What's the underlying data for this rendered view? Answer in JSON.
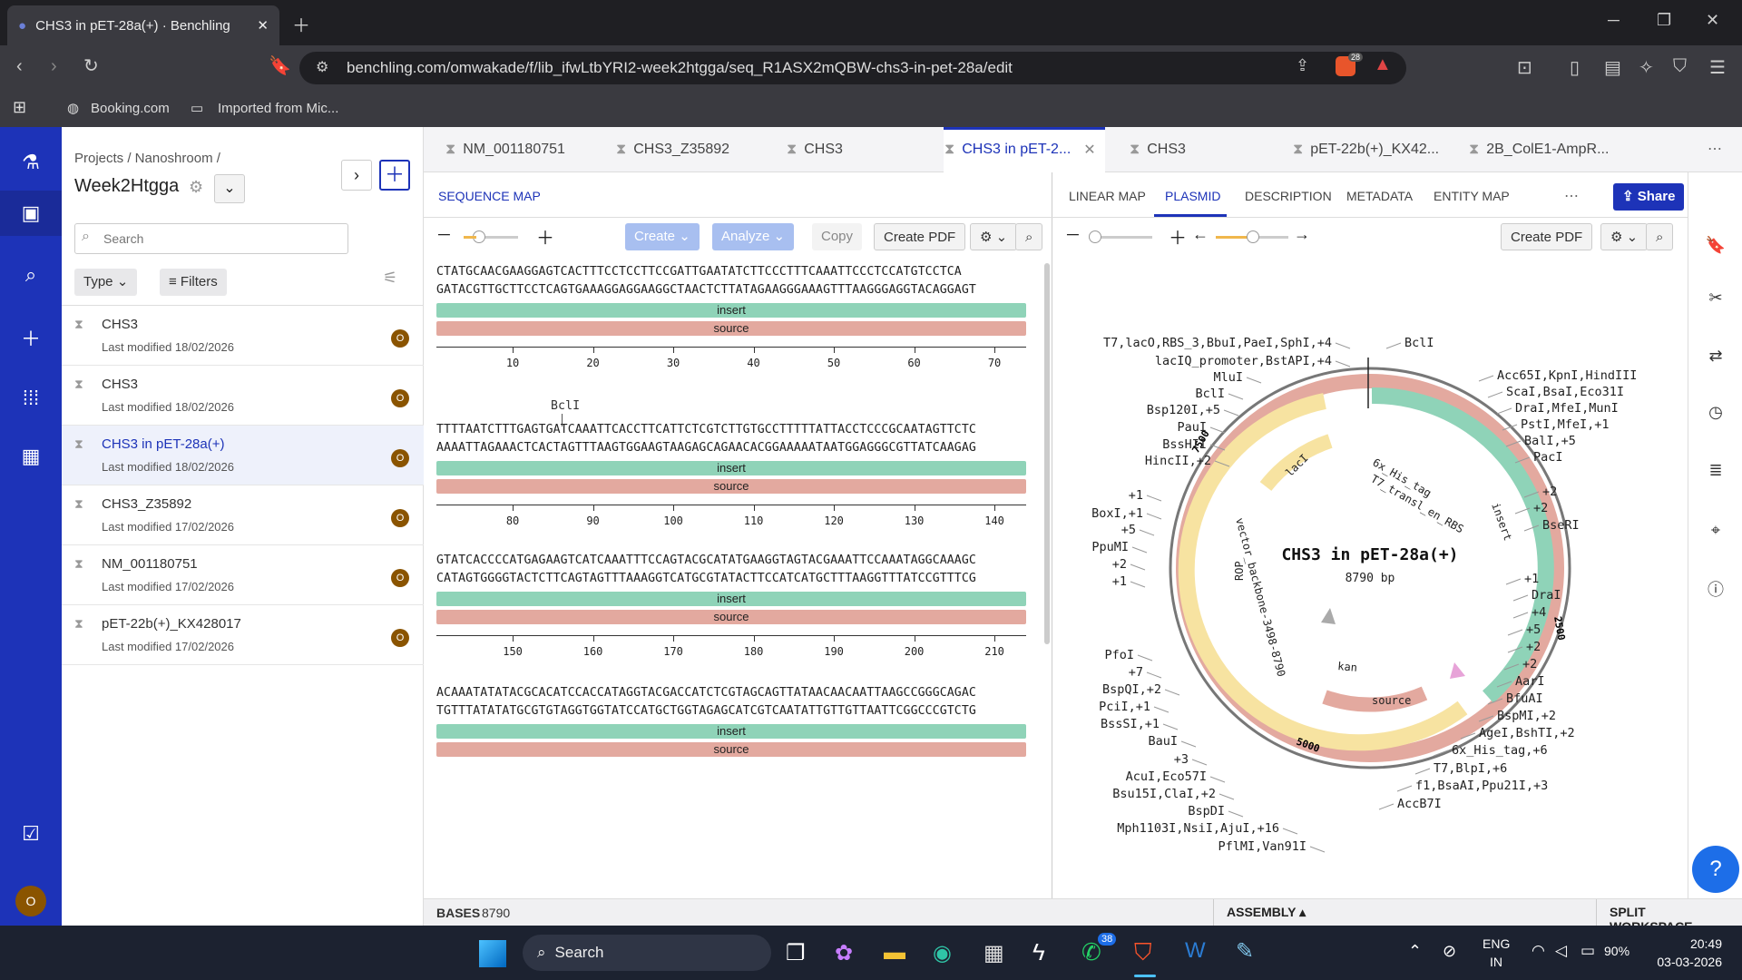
{
  "browser": {
    "tab_title": "CHS3 in pET-28a(+) · Benchling",
    "url": "benchling.com/omwakade/f/lib_ifwLtbYRI2-week2htgga/seq_R1ASX2mQBW-chs3-in-pet-28a/edit",
    "bookmarks": [
      "Booking.com",
      "Imported from Mic..."
    ],
    "brave_badge": "28"
  },
  "sidebar": {
    "breadcrumb": "Projects / Nanoshroom /",
    "folder": "Week2Htgga",
    "search_placeholder": "Search",
    "type_label": "Type",
    "filters_label": "Filters",
    "files": [
      {
        "name": "CHS3",
        "modified": "Last modified 18/02/2026",
        "avatar": "O"
      },
      {
        "name": "CHS3",
        "modified": "Last modified 18/02/2026",
        "avatar": "O"
      },
      {
        "name": "CHS3 in pET-28a(+)",
        "modified": "Last modified 18/02/2026",
        "avatar": "O"
      },
      {
        "name": "CHS3_Z35892",
        "modified": "Last modified 17/02/2026",
        "avatar": "O"
      },
      {
        "name": "NM_001180751",
        "modified": "Last modified 17/02/2026",
        "avatar": "O"
      },
      {
        "name": "pET-22b(+)_KX428017",
        "modified": "Last modified 17/02/2026",
        "avatar": "O"
      }
    ],
    "user_avatar": "O"
  },
  "doc_tabs": [
    "NM_001180751",
    "CHS3_Z35892",
    "CHS3",
    "CHS3 in pET-2...",
    "CHS3",
    "pET-22b(+)_KX42...",
    "2B_ColE1-AmpR..."
  ],
  "seq_panel": {
    "tab": "SEQUENCE MAP",
    "buttons": {
      "create": "Create",
      "analyze": "Analyze",
      "copy": "Copy",
      "pdf": "Create PDF"
    },
    "blocks": [
      {
        "top": "CTATGCAACGAAGGAGTCACTTTCCTCCTTCCGATTGAATATCTTCCCTTTCAAATTCCCTCCATGTCCTCA",
        "bottom": "GATACGTTGCTTCCTCAGTGAAAGGAGGAAGGCTAACTCTTATAGAAGGGAAAGTTTAAGGGAGGTACAGGAGT",
        "ticks": [
          "10",
          "20",
          "30",
          "40",
          "50",
          "60",
          "70"
        ],
        "enzyme": ""
      },
      {
        "top": "TTTTAATCTTTGAGTGATCAAATTCACCTTCATTCTCGTCTTGTGCCTTTTTATTACCTCCCGCAATAGTTCTC",
        "bottom": "AAAATTAGAAACTCACTAGTTTAAGTGGAAGTAAGAGCAGAACACGGAAAAATAATGGAGGGCGTTATCAAGAG",
        "ticks": [
          "80",
          "90",
          "100",
          "110",
          "120",
          "130",
          "140"
        ],
        "enzyme": "BclI"
      },
      {
        "top": "GTATCACCCCATGAGAAGTCATCAAATTTCCAGTACGCATATGAAGGTAGTACGAAATTCCAAATAGGCAAAGC",
        "bottom": "CATAGTGGGGTACTCTTCAGTAGTTTAAAGGTCATGCGTATACTTCCATCATGCTTTAAGGTTTATCCGTTTCG",
        "ticks": [
          "150",
          "160",
          "170",
          "180",
          "190",
          "200",
          "210",
          "220"
        ],
        "enzyme": ""
      },
      {
        "top": "ACAAATATATACGCACATCCACCATAGGTACGACCATCTCGTAGCAGTTATAACAACAATTAAGCCGGGCAGAC",
        "bottom": "TGTTTATATATGCGTGTAGGTGGTATCCATGCTGGTAGAGCATCGTCAATATTGTTGTTAATTCGGCCCGTCTG",
        "ticks": [],
        "enzyme": ""
      }
    ],
    "feature_insert": "insert",
    "feature_source": "source"
  },
  "plasmid_panel": {
    "tabs": [
      "LINEAR MAP",
      "PLASMID",
      "DESCRIPTION",
      "METADATA",
      "ENTITY MAP"
    ],
    "share": "Share",
    "pdf": "Create PDF",
    "name": "CHS3 in pET-28a(+)",
    "length": "8790 bp",
    "coords": [
      "7500",
      "2500",
      "5000"
    ],
    "features": [
      "lacI",
      "6x_His_tag",
      "T7_transl_en_RBS",
      "insert",
      "vector_backbone-3498-8790",
      "ROP",
      "kan",
      "source"
    ],
    "left_labels": [
      "T7,lacO,RBS_3,BbuI,PaeI,SphI,+4",
      "lacIQ_promoter,BstAPI,+4",
      "MluI",
      "BclI",
      "Bsp120I,+5",
      "PauI",
      "BssHII",
      "HincII,+2",
      "+1",
      "BoxI,+1",
      "+5",
      "PpuMI",
      "+2",
      "+1",
      "PfoI",
      "+7",
      "BspQI,+2",
      "PciI,+1",
      "BssSI,+1",
      "BauI",
      "+3",
      "AcuI,Eco57I",
      "Bsu15I,ClaI,+2",
      "BspDI",
      "Mph1103I,NsiI,AjuI,+16",
      "PflMI,Van91I"
    ],
    "right_labels": [
      "BclI",
      "Acc65I,KpnI,HindIII",
      "ScaI,BsaI,Eco31I",
      "DraI,MfeI,MunI",
      "PstI,MfeI,+1",
      "BalI,+5",
      "PacI",
      "+2",
      "+2",
      "BseRI",
      "+1",
      "DraI",
      "+4",
      "+5",
      "+2",
      "+2",
      "AarI",
      "BfuAI",
      "BspMI,+2",
      "AgeI,BshTI,+2",
      "6x_His_tag,+6",
      "T7,BlpI,+6",
      "f1,BsaAI,Ppu21I,+3",
      "AccB7I"
    ]
  },
  "status": {
    "bases_label": "BASES",
    "bases": "8790",
    "assembly": "ASSEMBLY",
    "split": "SPLIT WORKSPACE"
  },
  "taskbar": {
    "search": "Search",
    "lang": "ENG",
    "region": "IN",
    "battery": "90%",
    "time": "20:49",
    "date": "03-03-2026",
    "whatsapp_badge": "38"
  }
}
